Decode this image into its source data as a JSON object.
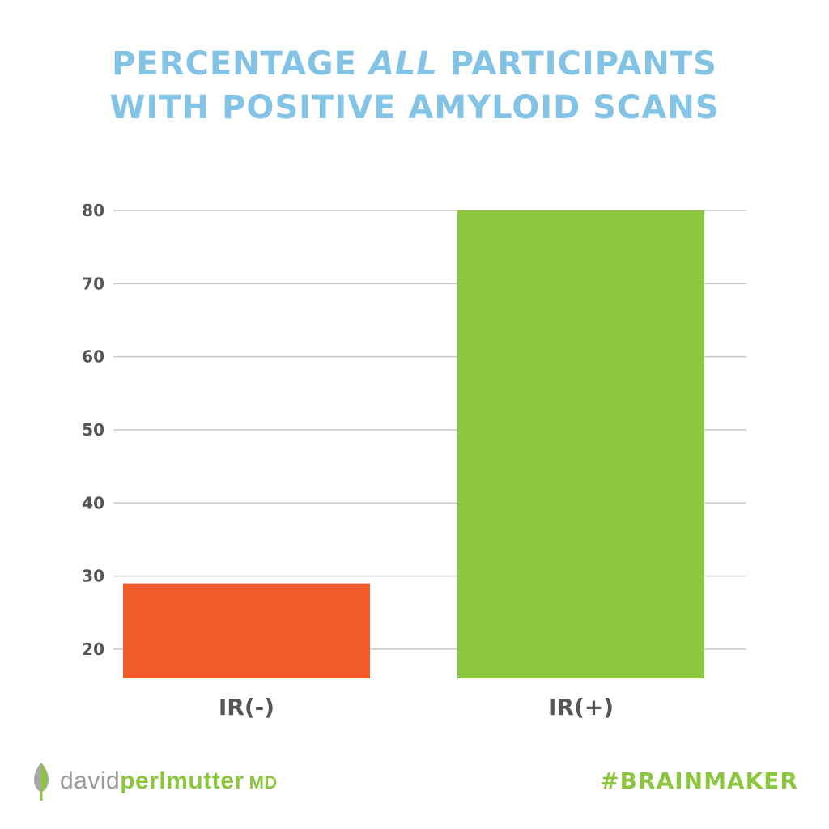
{
  "title": {
    "line1_pre": "PERCENTAGE ",
    "line1_em": "ALL",
    "line1_post": " PARTICIPANTS",
    "line2": "WITH POSITIVE AMYLOID SCANS"
  },
  "chart_data": {
    "type": "bar",
    "categories": [
      "IR(-)",
      "IR(+)"
    ],
    "values": [
      29,
      80
    ],
    "colors": [
      "#f15a2b",
      "#8dc63f"
    ],
    "yticks": [
      20,
      30,
      40,
      50,
      60,
      70,
      80
    ],
    "ylim": [
      16,
      80
    ],
    "grid": true
  },
  "footer": {
    "brand_first": "david",
    "brand_last": "perlmutter",
    "brand_suffix": "MD",
    "hashtag": "#BRAINMAKER",
    "logo_icon": "leaf-icon"
  }
}
